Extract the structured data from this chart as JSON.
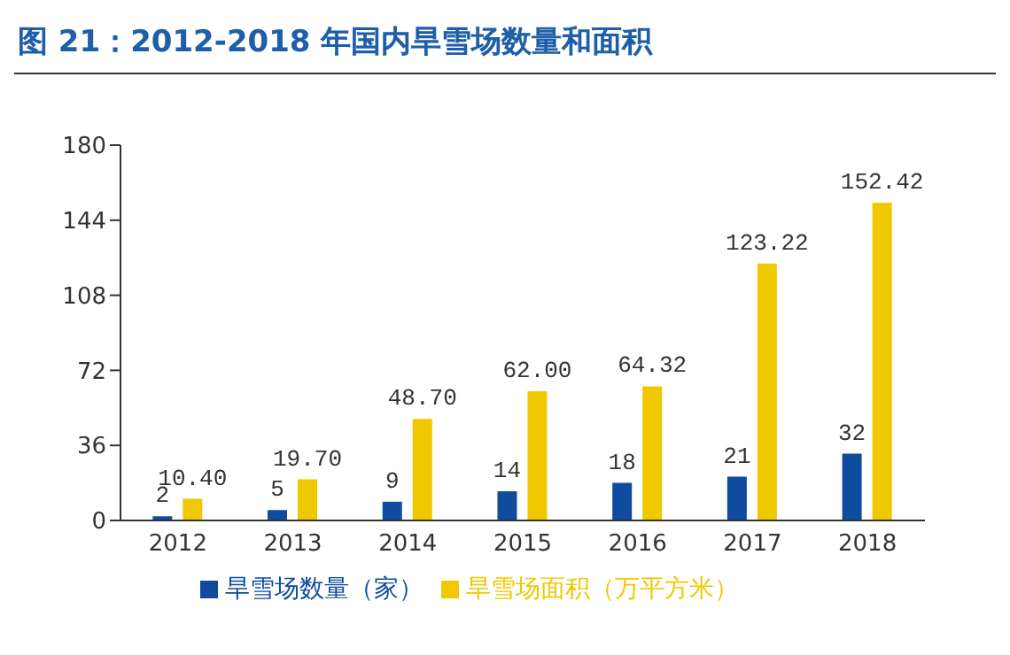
{
  "chart_data": {
    "type": "bar",
    "title": "图 21：2012-2018 年国内旱雪场数量和面积",
    "categories": [
      "2012",
      "2013",
      "2014",
      "2015",
      "2016",
      "2017",
      "2018"
    ],
    "series": [
      {
        "name": "旱雪场数量（家）",
        "color": "#0f4c9e",
        "values": [
          2,
          5,
          9,
          14,
          18,
          21,
          32
        ],
        "value_labels": [
          "2",
          "5",
          "9",
          "14",
          "18",
          "21",
          "32"
        ]
      },
      {
        "name": "旱雪场面积（万平方米）",
        "color": "#f0c800",
        "values": [
          10.4,
          19.7,
          48.7,
          62.0,
          64.32,
          123.22,
          152.42
        ],
        "value_labels": [
          "10.40",
          "19.70",
          "48.70",
          "62.00",
          "64.32",
          "123.22",
          "152.42"
        ]
      }
    ],
    "ylim": [
      0,
      180
    ],
    "yticks": [
      0,
      36,
      72,
      108,
      144,
      180
    ],
    "legend": "bottom",
    "grid": false
  }
}
